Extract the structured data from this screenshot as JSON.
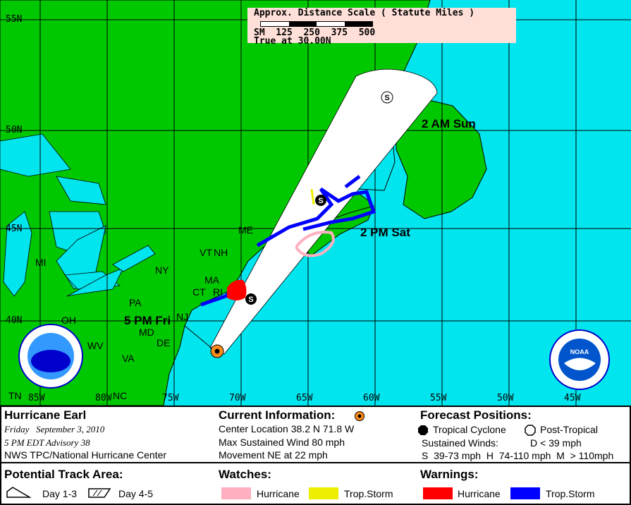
{
  "map": {
    "colors": {
      "ocean": "#00e5ee",
      "land": "#00c800",
      "cone": "#ffffff",
      "hurricane_warning": "#ff0000",
      "tropical_storm_warning": "#0000ff",
      "hurricane_watch": "#ffb0c0",
      "tropical_storm_watch": "#eeee00",
      "current_position": "#ff8c1a"
    },
    "scale": {
      "title": "Approx. Distance Scale ( Statute Miles )",
      "ticks": "SM  125  250  375  500",
      "true_at": "True at 30.00N"
    },
    "lat_labels": [
      "55N",
      "50N",
      "45N",
      "40N"
    ],
    "lon_labels": [
      "85W",
      "80W",
      "75W",
      "70W",
      "65W",
      "60W",
      "55W",
      "50W",
      "45W"
    ],
    "state_labels": [
      "ME",
      "VT",
      "NH",
      "NY",
      "MA",
      "CT",
      "RI",
      "PA",
      "NJ",
      "MI",
      "OH",
      "MD",
      "DE",
      "WV",
      "VA",
      "TN",
      "NC"
    ],
    "forecast_labels": [
      "5 PM Fri",
      "2 PM Sat",
      "2 AM Sun"
    ],
    "forecast_points": [
      {
        "symbol": "S",
        "type": "tropical-cyclone"
      },
      {
        "symbol": "S",
        "type": "tropical-cyclone"
      },
      {
        "symbol": "S",
        "type": "post-tropical"
      }
    ],
    "logos": [
      "NATIONAL WEATHER SERVICE",
      "NOAA"
    ]
  },
  "panel": {
    "storm_name": "Hurricane Earl",
    "date": "Friday   September 3, 2010",
    "advisory": "5 PM EDT Advisory 38",
    "agency": "NWS TPC/National Hurricane Center",
    "current": {
      "title": "Current Information:",
      "center": "Center Location 38.2 N  71.8 W",
      "wind": "Max Sustained Wind  80 mph",
      "movement": "Movement NE at  22 mph"
    },
    "forecast": {
      "title": "Forecast Positions:",
      "tc": "Tropical Cyclone",
      "pt": "Post-Tropical",
      "winds_label": "Sustained Winds:",
      "d": "D  < 39 mph",
      "shm": "S  39-73 mph  H  74-110 mph  M  > 110mph"
    },
    "track": {
      "title": "Potential Track Area:",
      "day13": "Day 1-3",
      "day45": "Day 4-5"
    },
    "watches": {
      "title": "Watches:",
      "hurricane": "Hurricane",
      "ts": "Trop.Storm"
    },
    "warnings": {
      "title": "Warnings:",
      "hurricane": "Hurricane",
      "ts": "Trop.Storm"
    }
  }
}
